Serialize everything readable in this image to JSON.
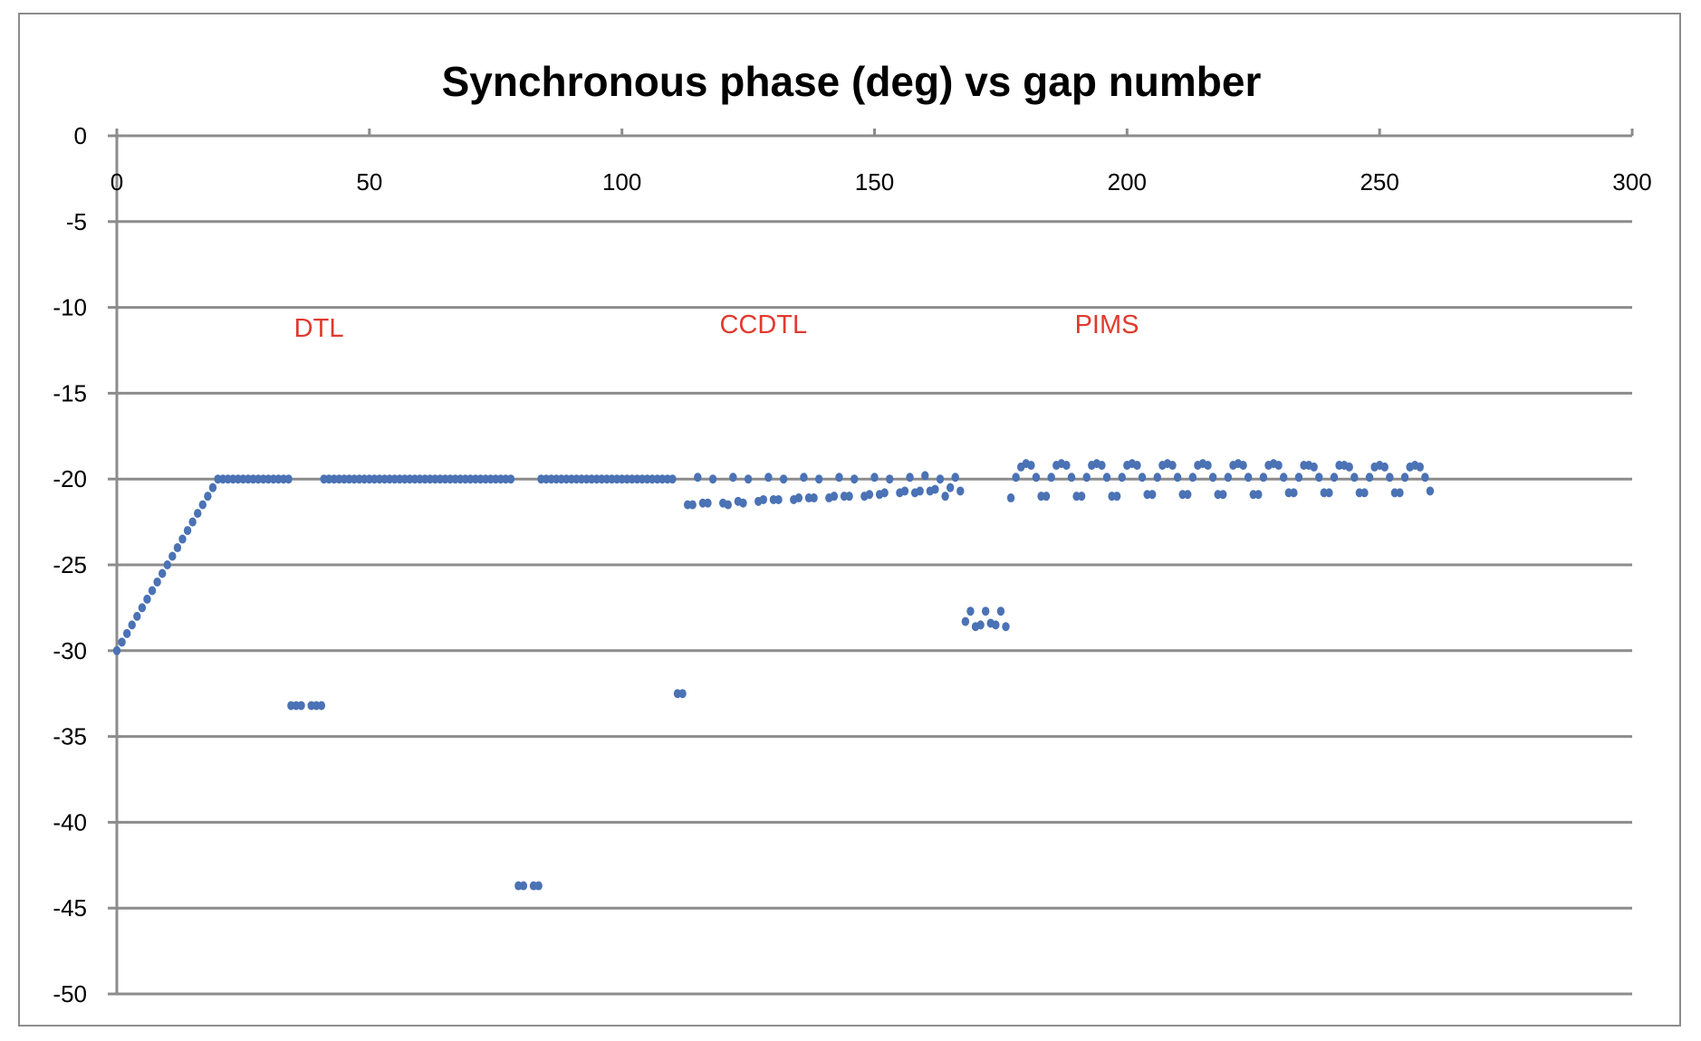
{
  "chart_data": {
    "type": "scatter",
    "title": "Synchronous phase (deg) vs gap number",
    "xlabel": "",
    "ylabel": "",
    "xlim": [
      0,
      300
    ],
    "ylim": [
      -50,
      0
    ],
    "x_ticks": [
      0,
      50,
      100,
      150,
      200,
      250,
      300
    ],
    "y_ticks": [
      0,
      -5,
      -10,
      -15,
      -20,
      -25,
      -30,
      -35,
      -40,
      -45,
      -50
    ],
    "grid": true,
    "legend": "none",
    "colors": {
      "points": "#4a72b5",
      "annotation": "#e03a2e",
      "grid": "#8c8c8c"
    },
    "annotations": [
      {
        "text": "DTL",
        "x": 40,
        "y": -11.7
      },
      {
        "text": "CCDTL",
        "x": 128,
        "y": -11.5
      },
      {
        "text": "PIMS",
        "x": 196,
        "y": -11.5
      }
    ],
    "series": [
      {
        "points": [
          [
            0,
            -30.0
          ],
          [
            1,
            -29.5
          ],
          [
            2,
            -29.0
          ],
          [
            3,
            -28.5
          ],
          [
            4,
            -28.0
          ],
          [
            5,
            -27.5
          ],
          [
            6,
            -27.0
          ],
          [
            7,
            -26.5
          ],
          [
            8,
            -26.0
          ],
          [
            9,
            -25.5
          ],
          [
            10,
            -25.0
          ],
          [
            11,
            -24.5
          ],
          [
            12,
            -24.0
          ],
          [
            13,
            -23.5
          ],
          [
            14,
            -23.0
          ],
          [
            15,
            -22.5
          ],
          [
            16,
            -22.0
          ],
          [
            17,
            -21.5
          ],
          [
            18,
            -21.0
          ],
          [
            19,
            -20.5
          ],
          [
            20,
            -20.0
          ],
          [
            21,
            -20.0
          ],
          [
            22,
            -20.0
          ],
          [
            23,
            -20.0
          ],
          [
            24,
            -20.0
          ],
          [
            25,
            -20.0
          ],
          [
            26,
            -20.0
          ],
          [
            27,
            -20.0
          ],
          [
            28,
            -20.0
          ],
          [
            29,
            -20.0
          ],
          [
            30,
            -20.0
          ],
          [
            31,
            -20.0
          ],
          [
            32,
            -20.0
          ],
          [
            33,
            -20.0
          ],
          [
            34,
            -20.0
          ],
          [
            34.5,
            -33.2
          ],
          [
            35.5,
            -33.2
          ],
          [
            36.5,
            -33.2
          ],
          [
            38.5,
            -33.2
          ],
          [
            39.5,
            -33.2
          ],
          [
            40.5,
            -33.2
          ],
          [
            41,
            -20.0
          ],
          [
            42,
            -20.0
          ],
          [
            43,
            -20.0
          ],
          [
            44,
            -20.0
          ],
          [
            45,
            -20.0
          ],
          [
            46,
            -20.0
          ],
          [
            47,
            -20.0
          ],
          [
            48,
            -20.0
          ],
          [
            49,
            -20.0
          ],
          [
            50,
            -20.0
          ],
          [
            51,
            -20.0
          ],
          [
            52,
            -20.0
          ],
          [
            53,
            -20.0
          ],
          [
            54,
            -20.0
          ],
          [
            55,
            -20.0
          ],
          [
            56,
            -20.0
          ],
          [
            57,
            -20.0
          ],
          [
            58,
            -20.0
          ],
          [
            59,
            -20.0
          ],
          [
            60,
            -20.0
          ],
          [
            61,
            -20.0
          ],
          [
            62,
            -20.0
          ],
          [
            63,
            -20.0
          ],
          [
            64,
            -20.0
          ],
          [
            65,
            -20.0
          ],
          [
            66,
            -20.0
          ],
          [
            67,
            -20.0
          ],
          [
            68,
            -20.0
          ],
          [
            69,
            -20.0
          ],
          [
            70,
            -20.0
          ],
          [
            71,
            -20.0
          ],
          [
            72,
            -20.0
          ],
          [
            73,
            -20.0
          ],
          [
            74,
            -20.0
          ],
          [
            75,
            -20.0
          ],
          [
            76,
            -20.0
          ],
          [
            77,
            -20.0
          ],
          [
            78,
            -20.0
          ],
          [
            79.5,
            -43.7
          ],
          [
            80.5,
            -43.7
          ],
          [
            82.5,
            -43.7
          ],
          [
            83.5,
            -43.7
          ],
          [
            84,
            -20.0
          ],
          [
            85,
            -20.0
          ],
          [
            86,
            -20.0
          ],
          [
            87,
            -20.0
          ],
          [
            88,
            -20.0
          ],
          [
            89,
            -20.0
          ],
          [
            90,
            -20.0
          ],
          [
            91,
            -20.0
          ],
          [
            92,
            -20.0
          ],
          [
            93,
            -20.0
          ],
          [
            94,
            -20.0
          ],
          [
            95,
            -20.0
          ],
          [
            96,
            -20.0
          ],
          [
            97,
            -20.0
          ],
          [
            98,
            -20.0
          ],
          [
            99,
            -20.0
          ],
          [
            100,
            -20.0
          ],
          [
            101,
            -20.0
          ],
          [
            102,
            -20.0
          ],
          [
            103,
            -20.0
          ],
          [
            104,
            -20.0
          ],
          [
            105,
            -20.0
          ],
          [
            106,
            -20.0
          ],
          [
            107,
            -20.0
          ],
          [
            108,
            -20.0
          ],
          [
            109,
            -20.0
          ],
          [
            110,
            -20.0
          ],
          [
            111,
            -32.5
          ],
          [
            112,
            -32.5
          ],
          [
            113,
            -21.5
          ],
          [
            114,
            -21.5
          ],
          [
            115,
            -19.9
          ],
          [
            116,
            -21.4
          ],
          [
            117,
            -21.4
          ],
          [
            118,
            -20.0
          ],
          [
            120,
            -21.4
          ],
          [
            121,
            -21.5
          ],
          [
            122,
            -19.9
          ],
          [
            123,
            -21.3
          ],
          [
            124,
            -21.4
          ],
          [
            125,
            -20.0
          ],
          [
            127,
            -21.3
          ],
          [
            128,
            -21.2
          ],
          [
            129,
            -19.9
          ],
          [
            130,
            -21.2
          ],
          [
            131,
            -21.2
          ],
          [
            132,
            -20.0
          ],
          [
            134,
            -21.2
          ],
          [
            135,
            -21.1
          ],
          [
            136,
            -19.9
          ],
          [
            137,
            -21.1
          ],
          [
            138,
            -21.1
          ],
          [
            139,
            -20.0
          ],
          [
            141,
            -21.1
          ],
          [
            142,
            -21.0
          ],
          [
            143,
            -19.9
          ],
          [
            144,
            -21.0
          ],
          [
            145,
            -21.0
          ],
          [
            146,
            -20.0
          ],
          [
            148,
            -21.0
          ],
          [
            149,
            -20.9
          ],
          [
            150,
            -19.9
          ],
          [
            151,
            -20.9
          ],
          [
            152,
            -20.8
          ],
          [
            153,
            -20.0
          ],
          [
            155,
            -20.8
          ],
          [
            156,
            -20.7
          ],
          [
            157,
            -19.9
          ],
          [
            158,
            -20.8
          ],
          [
            159,
            -20.7
          ],
          [
            160,
            -19.8
          ],
          [
            161,
            -20.7
          ],
          [
            162,
            -20.6
          ],
          [
            163,
            -20.0
          ],
          [
            164,
            -21.0
          ],
          [
            165,
            -20.5
          ],
          [
            166,
            -19.9
          ],
          [
            167,
            -20.7
          ],
          [
            168,
            -28.3
          ],
          [
            169,
            -27.7
          ],
          [
            170,
            -28.6
          ],
          [
            171,
            -28.5
          ],
          [
            172,
            -27.7
          ],
          [
            173,
            -28.4
          ],
          [
            174,
            -28.5
          ],
          [
            175,
            -27.7
          ],
          [
            176,
            -28.6
          ],
          [
            177,
            -21.1
          ],
          [
            178,
            -19.9
          ],
          [
            179,
            -19.3
          ],
          [
            180,
            -19.1
          ],
          [
            181,
            -19.2
          ],
          [
            182,
            -19.9
          ],
          [
            183,
            -21.0
          ],
          [
            184,
            -21.0
          ],
          [
            185,
            -19.9
          ],
          [
            186,
            -19.2
          ],
          [
            187,
            -19.1
          ],
          [
            188,
            -19.2
          ],
          [
            189,
            -19.9
          ],
          [
            190,
            -21.0
          ],
          [
            191,
            -21.0
          ],
          [
            192,
            -19.9
          ],
          [
            193,
            -19.2
          ],
          [
            194,
            -19.1
          ],
          [
            195,
            -19.2
          ],
          [
            196,
            -19.9
          ],
          [
            197,
            -21.0
          ],
          [
            198,
            -21.0
          ],
          [
            199,
            -19.9
          ],
          [
            200,
            -19.2
          ],
          [
            201,
            -19.1
          ],
          [
            202,
            -19.2
          ],
          [
            203,
            -19.9
          ],
          [
            204,
            -20.9
          ],
          [
            205,
            -20.9
          ],
          [
            206,
            -19.9
          ],
          [
            207,
            -19.2
          ],
          [
            208,
            -19.1
          ],
          [
            209,
            -19.2
          ],
          [
            210,
            -19.9
          ],
          [
            211,
            -20.9
          ],
          [
            212,
            -20.9
          ],
          [
            213,
            -19.9
          ],
          [
            214,
            -19.2
          ],
          [
            215,
            -19.1
          ],
          [
            216,
            -19.2
          ],
          [
            217,
            -19.9
          ],
          [
            218,
            -20.9
          ],
          [
            219,
            -20.9
          ],
          [
            220,
            -19.9
          ],
          [
            221,
            -19.2
          ],
          [
            222,
            -19.1
          ],
          [
            223,
            -19.2
          ],
          [
            224,
            -19.9
          ],
          [
            225,
            -20.9
          ],
          [
            226,
            -20.9
          ],
          [
            227,
            -19.9
          ],
          [
            228,
            -19.2
          ],
          [
            229,
            -19.1
          ],
          [
            230,
            -19.2
          ],
          [
            231,
            -19.9
          ],
          [
            232,
            -20.8
          ],
          [
            233,
            -20.8
          ],
          [
            234,
            -19.9
          ],
          [
            235,
            -19.2
          ],
          [
            236,
            -19.2
          ],
          [
            237,
            -19.3
          ],
          [
            238,
            -19.9
          ],
          [
            239,
            -20.8
          ],
          [
            240,
            -20.8
          ],
          [
            241,
            -19.9
          ],
          [
            242,
            -19.2
          ],
          [
            243,
            -19.2
          ],
          [
            244,
            -19.3
          ],
          [
            245,
            -19.9
          ],
          [
            246,
            -20.8
          ],
          [
            247,
            -20.8
          ],
          [
            248,
            -19.9
          ],
          [
            249,
            -19.3
          ],
          [
            250,
            -19.2
          ],
          [
            251,
            -19.3
          ],
          [
            252,
            -19.9
          ],
          [
            253,
            -20.8
          ],
          [
            254,
            -20.8
          ],
          [
            255,
            -19.9
          ],
          [
            256,
            -19.3
          ],
          [
            257,
            -19.2
          ],
          [
            258,
            -19.3
          ],
          [
            259,
            -19.9
          ],
          [
            260,
            -20.7
          ]
        ]
      }
    ]
  }
}
